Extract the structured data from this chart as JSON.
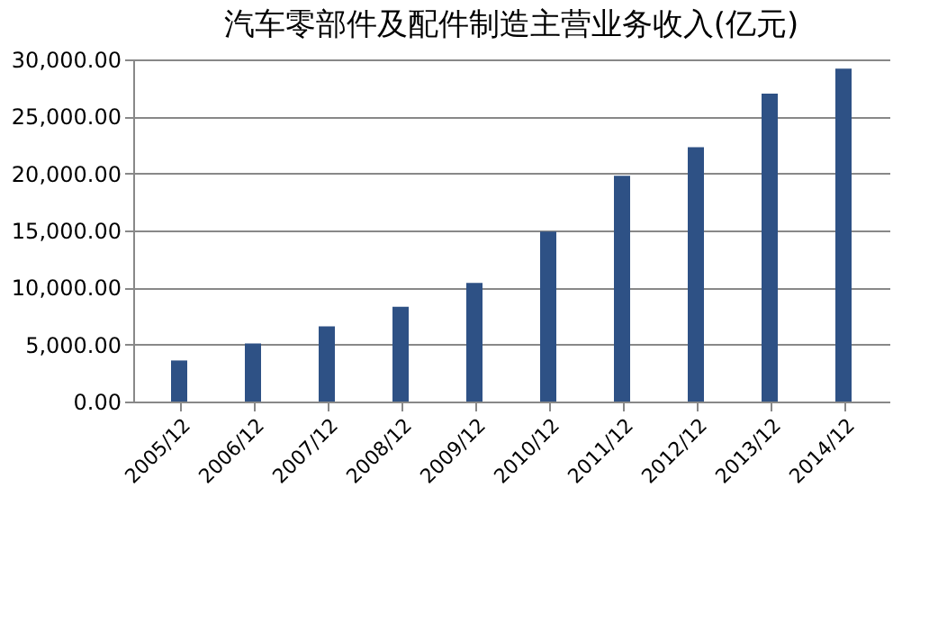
{
  "chart_data": {
    "type": "bar",
    "title": "汽车零部件及配件制造主营业务收入(亿元)",
    "categories": [
      "2005/12",
      "2006/12",
      "2007/12",
      "2008/12",
      "2009/12",
      "2010/12",
      "2011/12",
      "2012/12",
      "2013/12",
      "2014/12"
    ],
    "values": [
      3600,
      5100,
      6600,
      8300,
      10400,
      14900,
      19800,
      22300,
      27000,
      29200
    ],
    "color": "#2e5185",
    "ylim": [
      0,
      30000
    ],
    "yticks": [
      {
        "value": 0,
        "label": "0.00"
      },
      {
        "value": 5000,
        "label": "5,000.00"
      },
      {
        "value": 10000,
        "label": "10,000.00"
      },
      {
        "value": 15000,
        "label": "15,000.00"
      },
      {
        "value": 20000,
        "label": "20,000.00"
      },
      {
        "value": 25000,
        "label": "25,000.00"
      },
      {
        "value": 30000,
        "label": "30,000.00"
      }
    ],
    "grid": "y"
  }
}
